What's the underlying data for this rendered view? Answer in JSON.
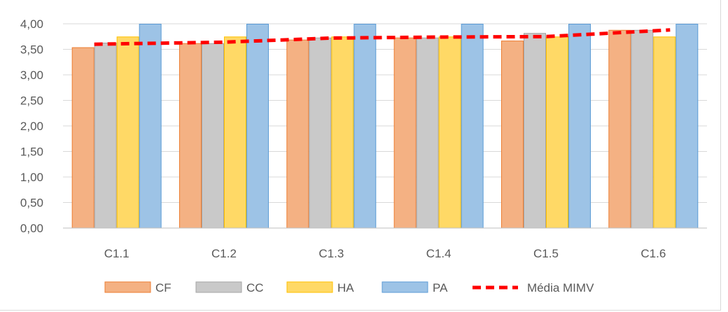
{
  "chart_data": {
    "type": "bar",
    "title": "",
    "xlabel": "",
    "ylabel": "",
    "categories": [
      "C1.1",
      "C1.2",
      "C1.3",
      "C1.4",
      "C1.5",
      "C1.6"
    ],
    "ylim": [
      0,
      4
    ],
    "yticks": [
      "0,00",
      "0,50",
      "1,00",
      "1,50",
      "2,00",
      "2,50",
      "3,00",
      "3,50",
      "4,00"
    ],
    "grid": true,
    "legend_position": "bottom",
    "series": [
      {
        "name": "CF",
        "type": "bar",
        "color": "#f4b183",
        "stroke": "#ed7d31",
        "values": [
          3.54,
          3.62,
          3.69,
          3.73,
          3.67,
          3.88
        ]
      },
      {
        "name": "CC",
        "type": "bar",
        "color": "#c9c9c9",
        "stroke": "#a5a5a5",
        "values": [
          3.63,
          3.62,
          3.73,
          3.73,
          3.82,
          3.88
        ]
      },
      {
        "name": "HA",
        "type": "bar",
        "color": "#ffd966",
        "stroke": "#ffc000",
        "values": [
          3.75,
          3.75,
          3.75,
          3.75,
          3.75,
          3.75
        ]
      },
      {
        "name": "PA",
        "type": "bar",
        "color": "#9dc3e6",
        "stroke": "#5b9bd5",
        "values": [
          4.0,
          4.0,
          4.0,
          4.0,
          4.0,
          4.0
        ]
      },
      {
        "name": "Média MIMV",
        "type": "line",
        "style": "dashed",
        "color": "#ff0000",
        "values": [
          3.6,
          3.64,
          3.72,
          3.74,
          3.75,
          3.88
        ]
      }
    ]
  }
}
